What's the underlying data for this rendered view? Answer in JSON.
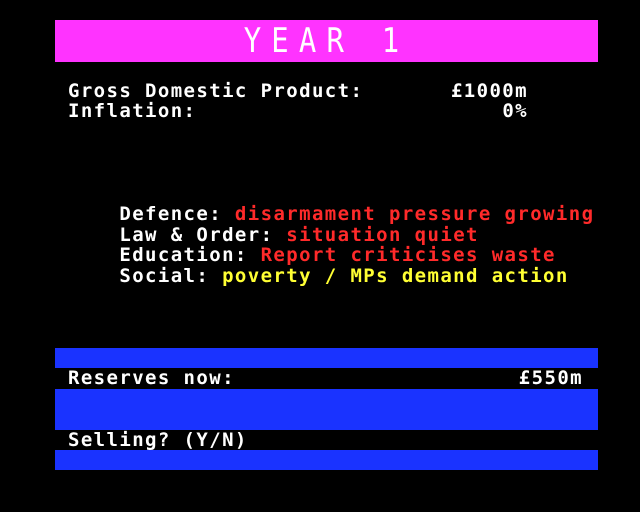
{
  "title": "YEAR 1",
  "economy": {
    "gdp_label": "Gross Domestic Product:",
    "gdp_value": "£1000m",
    "inflation_label": "Inflation:",
    "inflation_value": "0%"
  },
  "reports": [
    {
      "label": "Defence:",
      "status": "disarmament pressure growing",
      "status_color": "#ff2a2a"
    },
    {
      "label": "Law & Order:",
      "status": "situation quiet",
      "status_color": "#ff2a2a"
    },
    {
      "label": "Education:",
      "status": "Report criticises waste",
      "status_color": "#ff2a2a"
    },
    {
      "label": "Social:",
      "status": "poverty / MPs demand action",
      "status_color": "#ffff33"
    }
  ],
  "reserves": {
    "label": "Reserves now:",
    "value": "£550m"
  },
  "prompt": {
    "text": "Selling? (Y/N)"
  },
  "colors": {
    "background": "#000000",
    "title_bar": "#ff33ff",
    "panel_bar": "#1a33ff",
    "text": "#ffffff"
  }
}
